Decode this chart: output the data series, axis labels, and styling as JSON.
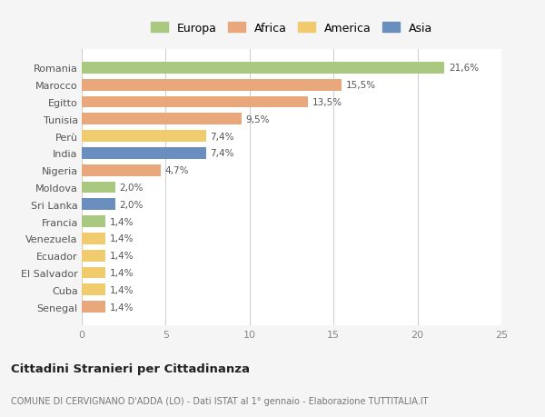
{
  "countries": [
    "Romania",
    "Marocco",
    "Egitto",
    "Tunisia",
    "Perù",
    "India",
    "Nigeria",
    "Moldova",
    "Sri Lanka",
    "Francia",
    "Venezuela",
    "Ecuador",
    "El Salvador",
    "Cuba",
    "Senegal"
  ],
  "values": [
    21.6,
    15.5,
    13.5,
    9.5,
    7.4,
    7.4,
    4.7,
    2.0,
    2.0,
    1.4,
    1.4,
    1.4,
    1.4,
    1.4,
    1.4
  ],
  "labels": [
    "21,6%",
    "15,5%",
    "13,5%",
    "9,5%",
    "7,4%",
    "7,4%",
    "4,7%",
    "2,0%",
    "2,0%",
    "1,4%",
    "1,4%",
    "1,4%",
    "1,4%",
    "1,4%",
    "1,4%"
  ],
  "continents": [
    "Europa",
    "Africa",
    "Africa",
    "Africa",
    "America",
    "Asia",
    "Africa",
    "Europa",
    "Asia",
    "Europa",
    "America",
    "America",
    "America",
    "America",
    "Africa"
  ],
  "colors": {
    "Europa": "#a8c97f",
    "Africa": "#e8a87c",
    "America": "#f0cc6e",
    "Asia": "#6a8fbf"
  },
  "legend_order": [
    "Europa",
    "Africa",
    "America",
    "Asia"
  ],
  "xlim": [
    0,
    25
  ],
  "xticks": [
    0,
    5,
    10,
    15,
    20,
    25
  ],
  "title": "Cittadini Stranieri per Cittadinanza",
  "subtitle": "COMUNE DI CERVIGNANO D'ADDA (LO) - Dati ISTAT al 1° gennaio - Elaborazione TUTTITALIA.IT",
  "background_color": "#f5f5f5",
  "bar_background": "#ffffff",
  "grid_color": "#d0d0d0"
}
